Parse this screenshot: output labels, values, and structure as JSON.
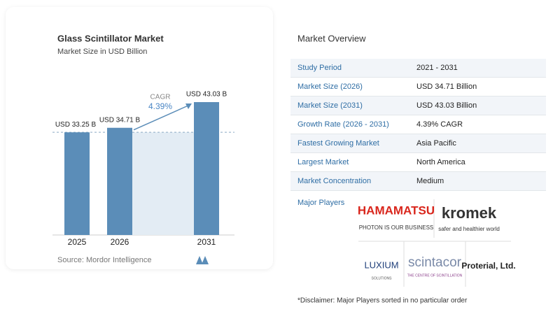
{
  "chart_data": {
    "type": "bar",
    "title": "Glass Scintillator Market",
    "subtitle": "Market Size in USD Billion",
    "categories": [
      "2025",
      "2026",
      "2031"
    ],
    "values": [
      33.25,
      34.71,
      43.03
    ],
    "value_labels": [
      "USD 33.25 B",
      "USD 34.71 B",
      "USD 43.03 B"
    ],
    "color": "#5b8db8",
    "annotation_label": "CAGR",
    "annotation_value": "4.39%",
    "source": "Source:  Mordor Intelligence"
  },
  "overview": {
    "title": "Market Overview",
    "rows": [
      [
        "Study Period",
        "2021 - 2031"
      ],
      [
        "Market Size (2026)",
        "USD 34.71 Billion"
      ],
      [
        "Market Size (2031)",
        "USD 43.03 Billion"
      ],
      [
        "Growth Rate (2026 - 2031)",
        "4.39% CAGR"
      ],
      [
        "Fastest Growing Market",
        "Asia Pacific"
      ],
      [
        "Largest Market",
        "North America"
      ],
      [
        "Market Concentration",
        "Medium"
      ]
    ]
  },
  "major_players": {
    "label": "Major Players",
    "logos": [
      "HAMAMATSU",
      "PHOTON IS OUR BUSINESS",
      "kromek",
      "safer and healthier world",
      "LUXIUM",
      "SOLUTIONS",
      "scintacor",
      "THE CENTRE OF SCINTILLATION",
      "Proterial, Ltd."
    ]
  },
  "disclaimer": "*Disclaimer: Major Players sorted in no particular order"
}
